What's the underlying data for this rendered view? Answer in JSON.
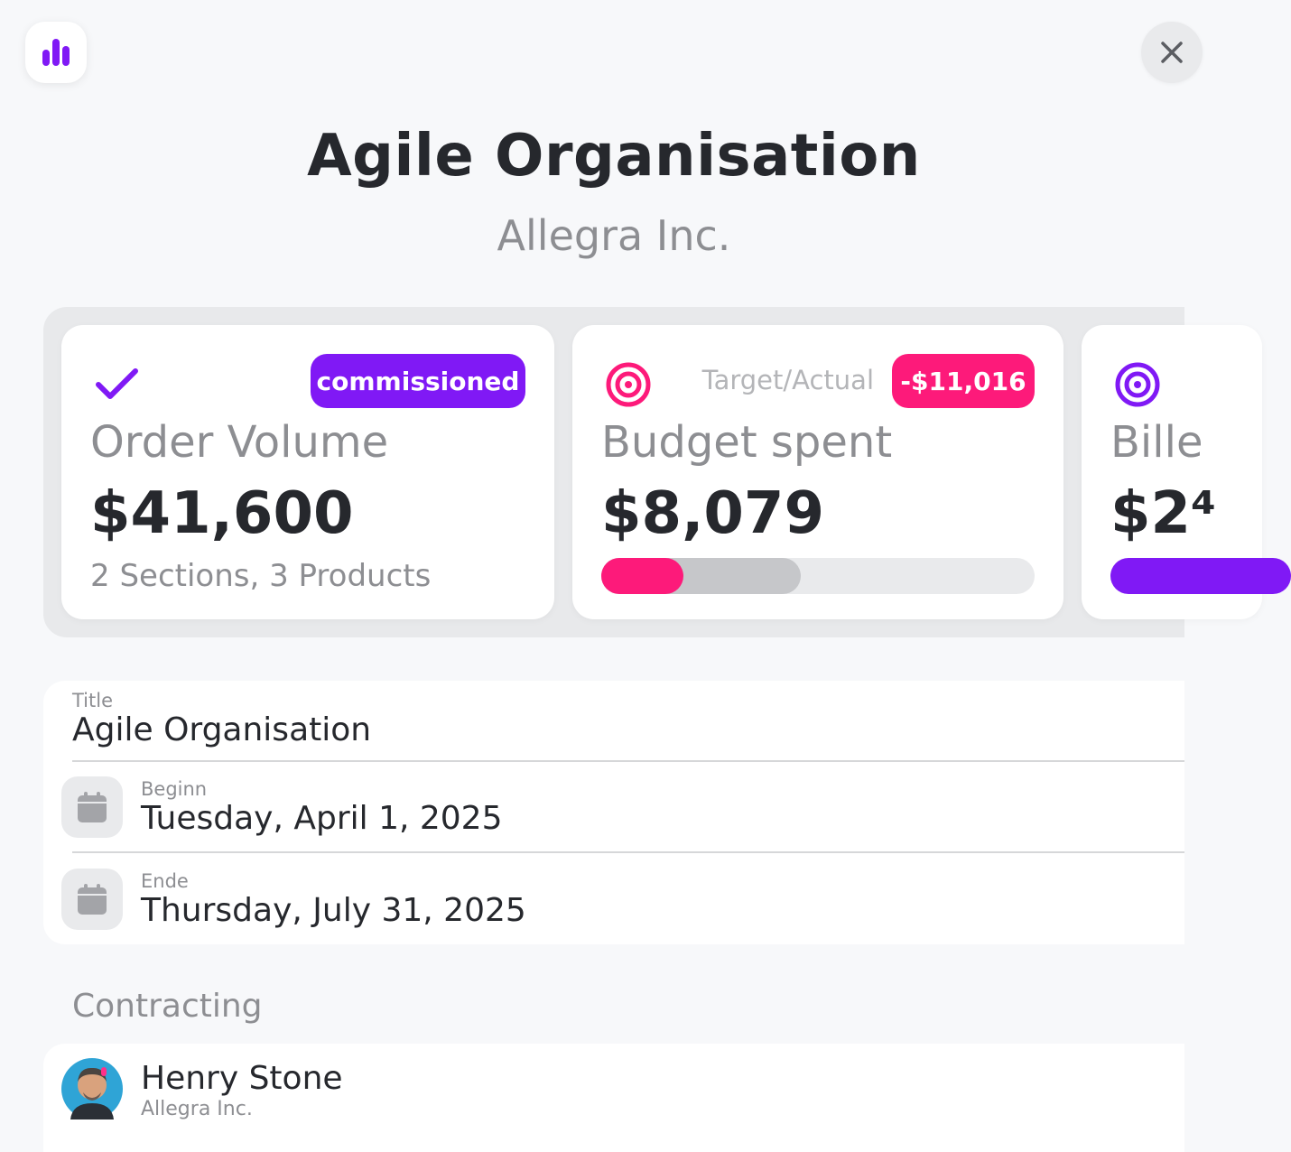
{
  "header": {
    "title": "Agile Organisation",
    "subtitle": "Allegra Inc."
  },
  "icons": {
    "app": "bar-chart-icon",
    "close": "close-icon"
  },
  "colors": {
    "purple": "#8019f5",
    "pink": "#fd1a7a",
    "text_dark": "#26282d",
    "text_muted": "#8d8e92"
  },
  "cards": [
    {
      "icon": "checkmark-icon",
      "badge": "commissioned",
      "label": "Order Volume",
      "value": "$41,600",
      "sub": "2 Sections, 3 Products"
    },
    {
      "icon": "target-icon",
      "target_actual_label": "Target/Actual",
      "badge": "-$11,016",
      "label": "Budget spent",
      "value": "$8,079",
      "progress_actual": 0.19,
      "progress_target": 0.46
    },
    {
      "icon": "target-icon",
      "label": "Bille",
      "value": "$2⁴"
    }
  ],
  "form": {
    "title_label": "Title",
    "title_value": "Agile Organisation",
    "begin_label": "Beginn",
    "begin_value": "Tuesday, April 1, 2025",
    "end_label": "Ende",
    "end_value": "Thursday, July 31, 2025"
  },
  "contracting": {
    "heading": "Contracting",
    "person_name": "Henry Stone",
    "person_company": "Allegra Inc."
  }
}
